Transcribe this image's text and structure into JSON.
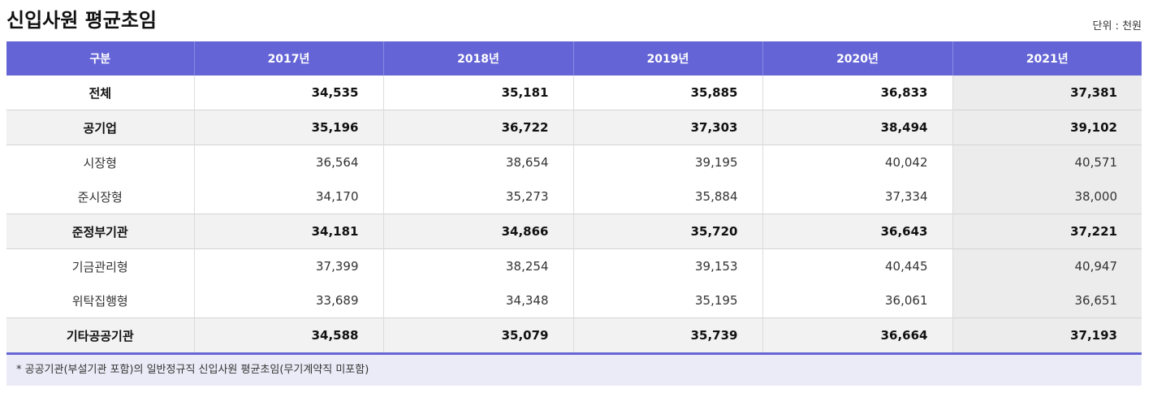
{
  "title": "신입사원 평균초임",
  "unit": "단위 : 천원",
  "columns": [
    "구분",
    "2017년",
    "2018년",
    "2019년",
    "2020년",
    "2021년"
  ],
  "rows": [
    {
      "label": "전체",
      "values": [
        "34,535",
        "35,181",
        "35,885",
        "36,833",
        "37,381"
      ]
    },
    {
      "label": "공기업",
      "values": [
        "35,196",
        "36,722",
        "37,303",
        "38,494",
        "39,102"
      ]
    },
    {
      "label": "시장형",
      "values": [
        "36,564",
        "38,654",
        "39,195",
        "40,042",
        "40,571"
      ]
    },
    {
      "label": "준시장형",
      "values": [
        "34,170",
        "35,273",
        "35,884",
        "37,334",
        "38,000"
      ]
    },
    {
      "label": "준정부기관",
      "values": [
        "34,181",
        "34,866",
        "35,720",
        "36,643",
        "37,221"
      ]
    },
    {
      "label": "기금관리형",
      "values": [
        "37,399",
        "38,254",
        "39,153",
        "40,445",
        "40,947"
      ]
    },
    {
      "label": "위탁집행형",
      "values": [
        "33,689",
        "34,348",
        "35,195",
        "36,061",
        "36,651"
      ]
    },
    {
      "label": "기타공공기관",
      "values": [
        "34,588",
        "35,079",
        "35,739",
        "36,664",
        "37,193"
      ]
    }
  ],
  "note": "* 공공기관(부설기관 포함)의 일반정규직 신입사원 평균초임(무기계약직 미포함)"
}
